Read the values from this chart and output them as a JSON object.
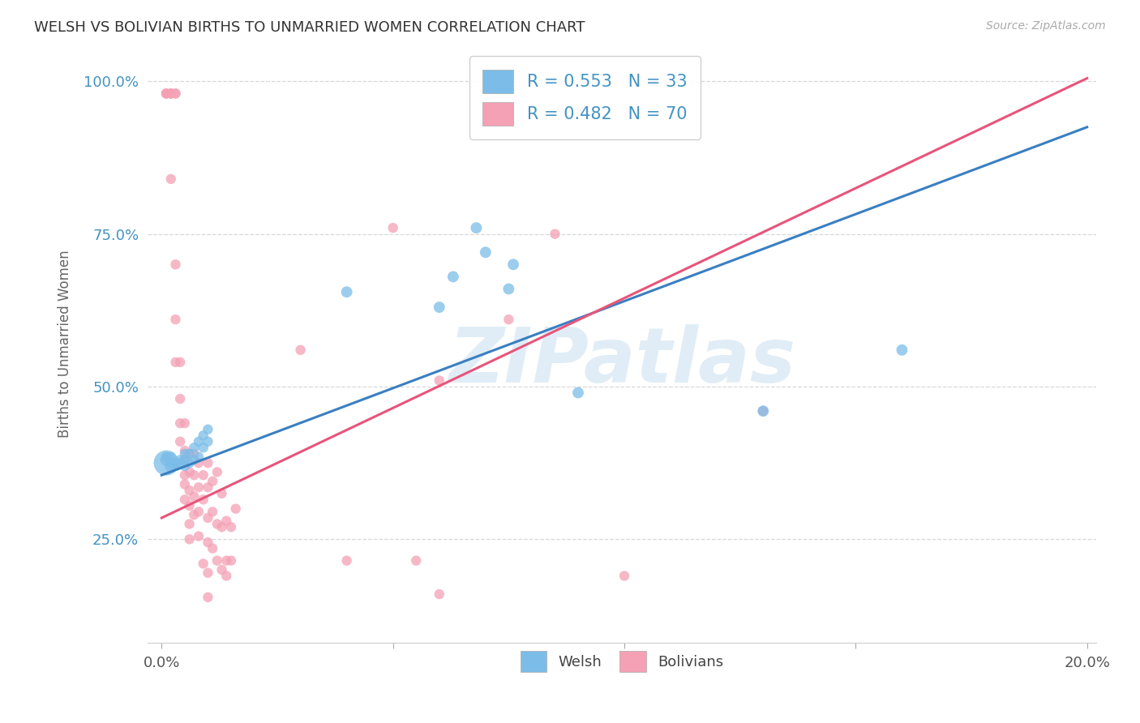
{
  "title": "WELSH VS BOLIVIAN BIRTHS TO UNMARRIED WOMEN CORRELATION CHART",
  "source": "Source: ZipAtlas.com",
  "ylabel": "Births to Unmarried Women",
  "watermark": "ZIPatlas",
  "welsh_R": 0.553,
  "welsh_N": 33,
  "bolivian_R": 0.482,
  "bolivian_N": 70,
  "welsh_color": "#7bbde8",
  "bolivian_color": "#f4a0b5",
  "welsh_line_color": "#3a7fc1",
  "bolivian_line_color": "#e8547a",
  "legend_text_color": "#4393c3",
  "background_color": "#ffffff",
  "grid_color": "#d8d8d8",
  "ytick_color": "#4393c3",
  "welsh_line_endpoints": [
    [
      0.0,
      0.355
    ],
    [
      0.2,
      0.925
    ]
  ],
  "bolivian_line_endpoints": [
    [
      0.0,
      0.285
    ],
    [
      0.2,
      1.005
    ]
  ],
  "welsh_points": [
    [
      0.001,
      0.375
    ],
    [
      0.001,
      0.38
    ],
    [
      0.001,
      0.385
    ],
    [
      0.002,
      0.37
    ],
    [
      0.002,
      0.375
    ],
    [
      0.002,
      0.385
    ],
    [
      0.003,
      0.37
    ],
    [
      0.003,
      0.375
    ],
    [
      0.004,
      0.375
    ],
    [
      0.004,
      0.38
    ],
    [
      0.005,
      0.37
    ],
    [
      0.005,
      0.38
    ],
    [
      0.005,
      0.39
    ],
    [
      0.006,
      0.375
    ],
    [
      0.006,
      0.39
    ],
    [
      0.007,
      0.38
    ],
    [
      0.007,
      0.4
    ],
    [
      0.008,
      0.385
    ],
    [
      0.008,
      0.41
    ],
    [
      0.009,
      0.4
    ],
    [
      0.009,
      0.42
    ],
    [
      0.01,
      0.41
    ],
    [
      0.01,
      0.43
    ],
    [
      0.04,
      0.655
    ],
    [
      0.06,
      0.63
    ],
    [
      0.063,
      0.68
    ],
    [
      0.068,
      0.76
    ],
    [
      0.07,
      0.72
    ],
    [
      0.075,
      0.66
    ],
    [
      0.076,
      0.7
    ],
    [
      0.09,
      0.49
    ],
    [
      0.13,
      0.46
    ],
    [
      0.16,
      0.56
    ]
  ],
  "welsh_sizes": [
    500,
    120,
    80,
    120,
    80,
    80,
    80,
    80,
    80,
    80,
    80,
    80,
    80,
    80,
    80,
    80,
    80,
    80,
    80,
    80,
    80,
    80,
    80,
    100,
    100,
    100,
    100,
    100,
    100,
    100,
    100,
    100,
    100
  ],
  "bolivian_points": [
    [
      0.001,
      0.98
    ],
    [
      0.001,
      0.98
    ],
    [
      0.001,
      0.98
    ],
    [
      0.002,
      0.98
    ],
    [
      0.002,
      0.98
    ],
    [
      0.002,
      0.98
    ],
    [
      0.003,
      0.98
    ],
    [
      0.003,
      0.98
    ],
    [
      0.002,
      0.84
    ],
    [
      0.003,
      0.7
    ],
    [
      0.003,
      0.61
    ],
    [
      0.003,
      0.54
    ],
    [
      0.004,
      0.54
    ],
    [
      0.004,
      0.48
    ],
    [
      0.004,
      0.44
    ],
    [
      0.004,
      0.41
    ],
    [
      0.005,
      0.44
    ],
    [
      0.005,
      0.395
    ],
    [
      0.005,
      0.38
    ],
    [
      0.005,
      0.355
    ],
    [
      0.005,
      0.34
    ],
    [
      0.005,
      0.315
    ],
    [
      0.006,
      0.39
    ],
    [
      0.006,
      0.36
    ],
    [
      0.006,
      0.33
    ],
    [
      0.006,
      0.305
    ],
    [
      0.006,
      0.275
    ],
    [
      0.006,
      0.25
    ],
    [
      0.007,
      0.39
    ],
    [
      0.007,
      0.355
    ],
    [
      0.007,
      0.32
    ],
    [
      0.007,
      0.29
    ],
    [
      0.008,
      0.375
    ],
    [
      0.008,
      0.335
    ],
    [
      0.008,
      0.295
    ],
    [
      0.008,
      0.255
    ],
    [
      0.009,
      0.355
    ],
    [
      0.009,
      0.315
    ],
    [
      0.009,
      0.21
    ],
    [
      0.01,
      0.375
    ],
    [
      0.01,
      0.335
    ],
    [
      0.01,
      0.285
    ],
    [
      0.01,
      0.245
    ],
    [
      0.01,
      0.195
    ],
    [
      0.01,
      0.155
    ],
    [
      0.011,
      0.345
    ],
    [
      0.011,
      0.295
    ],
    [
      0.011,
      0.235
    ],
    [
      0.012,
      0.36
    ],
    [
      0.012,
      0.275
    ],
    [
      0.012,
      0.215
    ],
    [
      0.013,
      0.325
    ],
    [
      0.013,
      0.27
    ],
    [
      0.013,
      0.2
    ],
    [
      0.014,
      0.28
    ],
    [
      0.014,
      0.215
    ],
    [
      0.014,
      0.19
    ],
    [
      0.015,
      0.27
    ],
    [
      0.015,
      0.215
    ],
    [
      0.016,
      0.3
    ],
    [
      0.03,
      0.56
    ],
    [
      0.04,
      0.215
    ],
    [
      0.05,
      0.76
    ],
    [
      0.055,
      0.215
    ],
    [
      0.06,
      0.51
    ],
    [
      0.06,
      0.16
    ],
    [
      0.075,
      0.61
    ],
    [
      0.085,
      0.75
    ],
    [
      0.1,
      0.19
    ],
    [
      0.13,
      0.46
    ]
  ],
  "xlim": [
    -0.003,
    0.202
  ],
  "ylim": [
    0.08,
    1.06
  ],
  "yticks": [
    0.25,
    0.5,
    0.75,
    1.0
  ],
  "ytick_labels": [
    "25.0%",
    "50.0%",
    "75.0%",
    "100.0%"
  ],
  "xticks": [
    0.0,
    0.05,
    0.1,
    0.15,
    0.2
  ],
  "xtick_labels": [
    "0.0%",
    "",
    "",
    "",
    "20.0%"
  ]
}
